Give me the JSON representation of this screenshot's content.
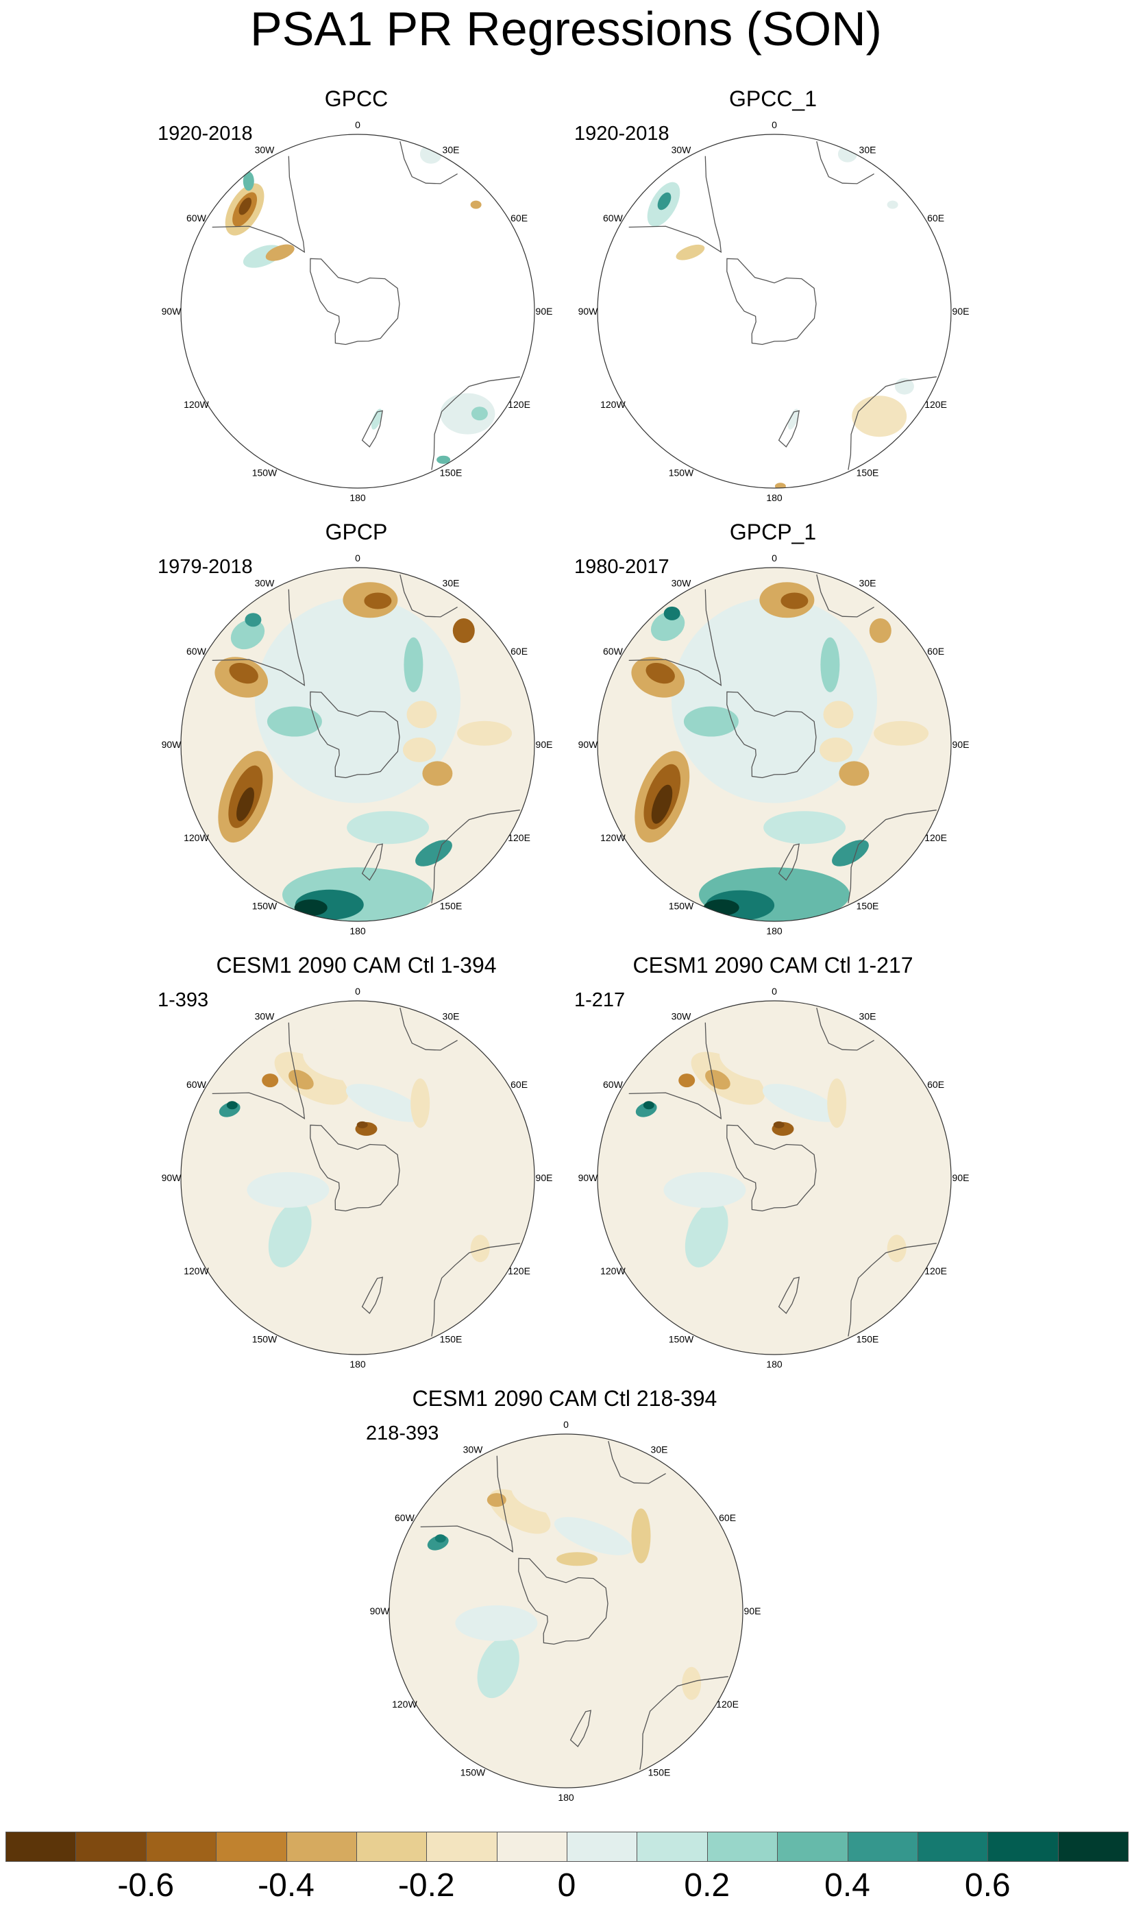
{
  "title": "PSA1 PR Regressions (SON)",
  "lon_labels": [
    "0",
    "30E",
    "60E",
    "90E",
    "120E",
    "150E",
    "180",
    "150W",
    "120W",
    "90W",
    "60W",
    "30W"
  ],
  "panels": [
    {
      "title": "GPCC",
      "period": "1920-2018",
      "pattern": "gpcc"
    },
    {
      "title": "GPCC_1",
      "period": "1920-2018",
      "pattern": "gpcc1"
    },
    {
      "title": "GPCP",
      "period": "1979-2018",
      "pattern": "gpcp"
    },
    {
      "title": "GPCP_1",
      "period": "1980-2017",
      "pattern": "gpcp1"
    },
    {
      "title": "CESM1 2090 CAM Ctl 1-394",
      "period": "1-393",
      "pattern": "cesm"
    },
    {
      "title": "CESM1 2090 CAM Ctl 1-217",
      "period": "1-217",
      "pattern": "cesm"
    },
    {
      "title": "CESM1 2090 CAM Ctl 218-394",
      "period": "218-393",
      "pattern": "cesm2"
    }
  ],
  "colorbar": {
    "colors": [
      "#5c3509",
      "#7f4a10",
      "#9f6219",
      "#c0822f",
      "#d6aa5f",
      "#e8cf91",
      "#f3e4bf",
      "#f4efe2",
      "#e2efed",
      "#c5e8e1",
      "#98d6c9",
      "#66baaa",
      "#35978d",
      "#157a70",
      "#035d51",
      "#003c2f"
    ],
    "labels": [
      "-0.6",
      "-0.4",
      "-0.2",
      "0",
      "0.2",
      "0.4",
      "0.6"
    ]
  }
}
